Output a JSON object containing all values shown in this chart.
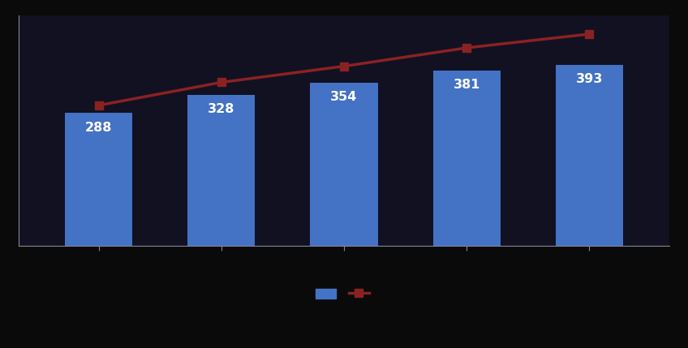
{
  "categories": [
    "",
    "",
    "",
    "",
    ""
  ],
  "bar_values": [
    288,
    328,
    354,
    381,
    393
  ],
  "line_values": [
    305,
    355,
    390,
    430,
    460
  ],
  "bar_color": "#4472C4",
  "line_color": "#8B2222",
  "bar_label_color": "white",
  "fig_bg_color": "#0a0a0a",
  "plot_bg_color": "#111122",
  "ylim": [
    0,
    500
  ],
  "bar_width": 0.55,
  "grid_color": "#666688",
  "grid_alpha": 0.5,
  "label_fontsize": 11.5,
  "spine_color": "#888899"
}
